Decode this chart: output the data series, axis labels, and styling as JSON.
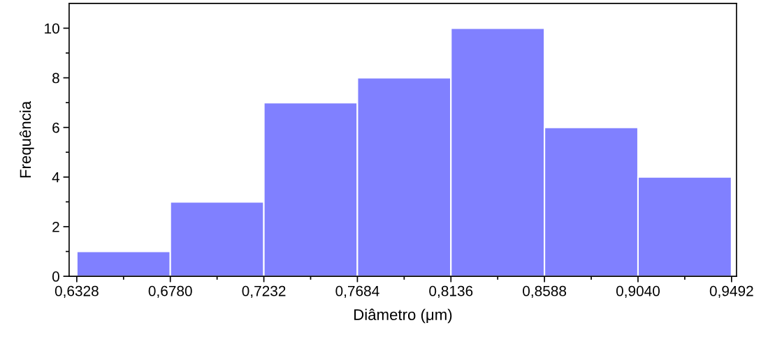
{
  "chart_data": {
    "type": "histogram",
    "xlabel": "Diâmetro (μm)",
    "ylabel": "Frequência",
    "bins": [
      0.6328,
      0.678,
      0.7232,
      0.7684,
      0.8136,
      0.8588,
      0.904,
      0.9492
    ],
    "values": [
      1,
      3,
      7,
      8,
      10,
      6,
      4
    ],
    "color": "#8080ff",
    "xlim": [
      0.6291,
      0.9516
    ],
    "xticks": [
      {
        "value": 0.6328,
        "label": "0,6328"
      },
      {
        "value": 0.678,
        "label": "0,6780"
      },
      {
        "value": 0.7232,
        "label": "0,7232"
      },
      {
        "value": 0.7684,
        "label": "0,7684"
      },
      {
        "value": 0.8136,
        "label": "0,8136"
      },
      {
        "value": 0.8588,
        "label": "0,8588"
      },
      {
        "value": 0.904,
        "label": "0,9040"
      },
      {
        "value": 0.9492,
        "label": "0,9492"
      }
    ],
    "ylim": [
      0,
      11
    ],
    "yticks": [
      0,
      2,
      4,
      6,
      8,
      10
    ],
    "grid": false
  }
}
